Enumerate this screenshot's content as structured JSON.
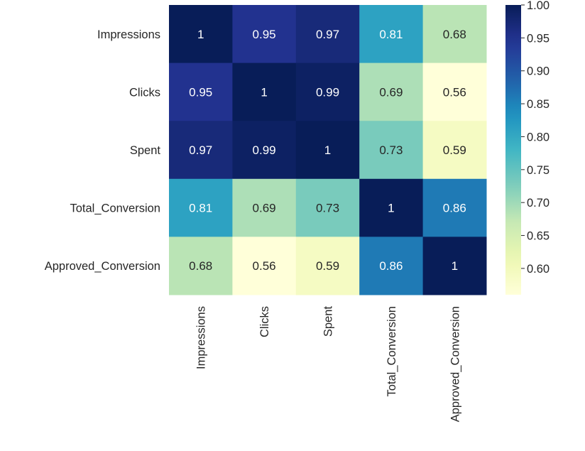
{
  "chart_data": {
    "type": "heatmap",
    "title": "",
    "xlabel": "",
    "ylabel": "",
    "x_categories": [
      "Impressions",
      "Clicks",
      "Spent",
      "Total_Conversion",
      "Approved_Conversion"
    ],
    "y_categories": [
      "Impressions",
      "Clicks",
      "Spent",
      "Total_Conversion",
      "Approved_Conversion"
    ],
    "values": [
      [
        1,
        0.95,
        0.97,
        0.81,
        0.68
      ],
      [
        0.95,
        1,
        0.99,
        0.69,
        0.56
      ],
      [
        0.97,
        0.99,
        1,
        0.73,
        0.59
      ],
      [
        0.81,
        0.69,
        0.73,
        1,
        0.86
      ],
      [
        0.68,
        0.56,
        0.59,
        0.86,
        1
      ]
    ],
    "annotations": [
      [
        "1",
        "0.95",
        "0.97",
        "0.81",
        "0.68"
      ],
      [
        "0.95",
        "1",
        "0.99",
        "0.69",
        "0.56"
      ],
      [
        "0.97",
        "0.99",
        "1",
        "0.73",
        "0.59"
      ],
      [
        "0.81",
        "0.69",
        "0.73",
        "1",
        "0.86"
      ],
      [
        "0.68",
        "0.56",
        "0.59",
        "0.86",
        "1"
      ]
    ],
    "colormap": "YlGnBu",
    "colorbar": {
      "range": [
        0.56,
        1.0
      ],
      "ticks": [
        1.0,
        0.95,
        0.9,
        0.85,
        0.8,
        0.75,
        0.7,
        0.65,
        0.6
      ],
      "tick_labels": [
        "1.00",
        "0.95",
        "0.90",
        "0.85",
        "0.80",
        "0.75",
        "0.70",
        "0.65",
        "0.60"
      ]
    },
    "grid": false,
    "legend_placement": "right"
  }
}
